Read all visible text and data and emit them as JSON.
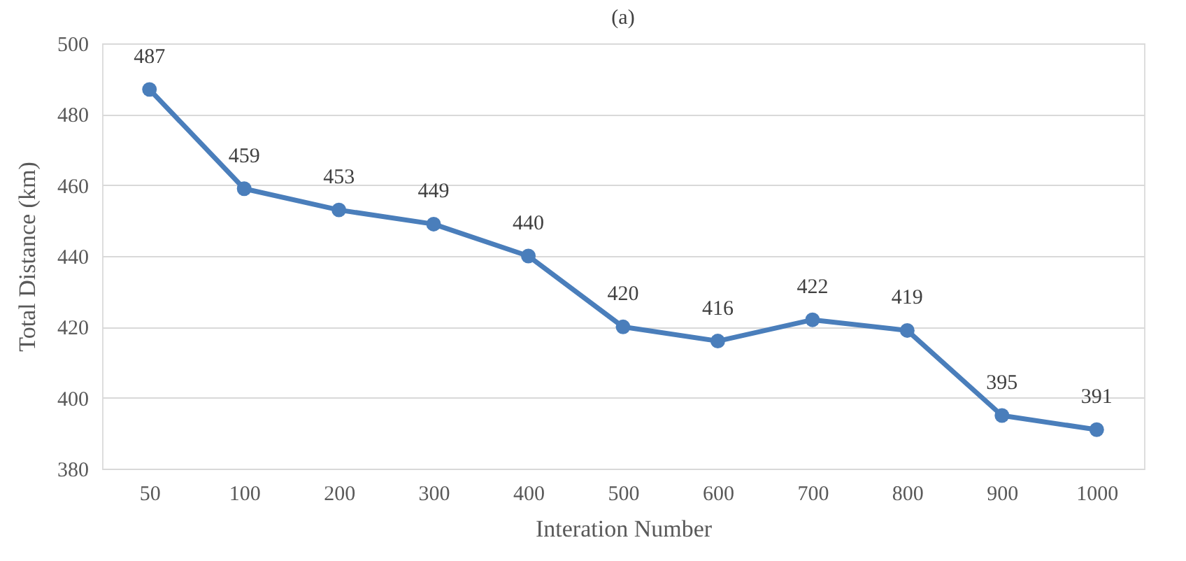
{
  "chart_data": {
    "type": "line",
    "title": "(a)",
    "xlabel": "Interation Number",
    "ylabel": "Total Distance (km)",
    "categories": [
      "50",
      "100",
      "200",
      "300",
      "400",
      "500",
      "600",
      "700",
      "800",
      "900",
      "1000"
    ],
    "series": [
      {
        "color": "#4a7ebb",
        "values": [
          487,
          459,
          453,
          449,
          440,
          420,
          416,
          422,
          419,
          395,
          391
        ]
      }
    ],
    "ylim": [
      380,
      500
    ],
    "yticks": [
      380,
      400,
      420,
      440,
      460,
      480,
      500
    ],
    "grid": "y",
    "marker": "circle",
    "line_style": "solid",
    "data_labels": true
  }
}
